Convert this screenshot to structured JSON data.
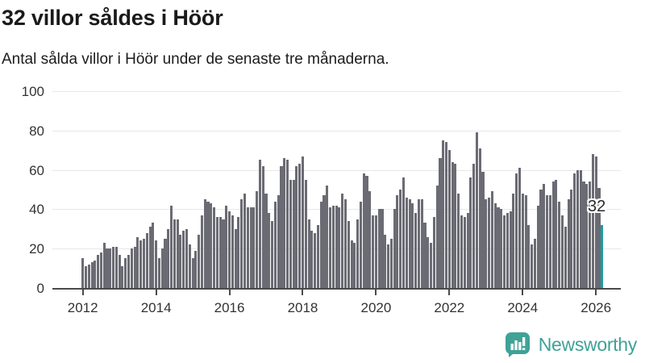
{
  "header": {
    "title": "32 villor såldes i Höör",
    "subtitle": "Antal sålda villor i Höör under de senaste tre månaderna."
  },
  "chart_data": {
    "type": "bar",
    "title": "32 villor såldes i Höör",
    "subtitle": "Antal sålda villor i Höör under de senaste tre månaderna.",
    "x_start": "2012-01",
    "frequency": "monthly",
    "values": [
      15,
      11,
      12,
      13,
      14,
      17,
      18,
      23,
      20,
      20,
      21,
      21,
      17,
      11,
      15,
      17,
      20,
      21,
      26,
      24,
      25,
      28,
      31,
      33,
      24,
      15,
      20,
      25,
      30,
      42,
      35,
      35,
      27,
      29,
      30,
      22,
      15,
      19,
      27,
      37,
      45,
      44,
      43,
      41,
      36,
      36,
      35,
      42,
      39,
      37,
      30,
      36,
      45,
      48,
      41,
      41,
      41,
      49,
      65,
      62,
      48,
      38,
      34,
      44,
      47,
      62,
      66,
      65,
      55,
      55,
      62,
      63,
      67,
      55,
      35,
      29,
      28,
      32,
      44,
      47,
      52,
      41,
      42,
      42,
      41,
      48,
      45,
      34,
      24,
      23,
      35,
      44,
      58,
      57,
      49,
      37,
      37,
      40,
      40,
      27,
      22,
      25,
      40,
      47,
      50,
      56,
      46,
      45,
      43,
      38,
      45,
      45,
      33,
      26,
      23,
      36,
      52,
      66,
      75,
      74,
      70,
      64,
      63,
      48,
      37,
      36,
      38,
      56,
      63,
      79,
      71,
      59,
      45,
      46,
      49,
      43,
      41,
      40,
      37,
      38,
      39,
      48,
      58,
      61,
      48,
      47,
      32,
      22,
      25,
      42,
      50,
      53,
      47,
      47,
      54,
      55,
      44,
      37,
      31,
      45,
      50,
      58,
      60,
      60,
      54,
      53,
      54,
      68,
      67,
      51,
      32
    ],
    "highlight_last_value": 32,
    "annotation": {
      "text": "32"
    },
    "x_tick_labels": [
      "2012",
      "2014",
      "2016",
      "2018",
      "2020",
      "2022",
      "2024",
      "2026"
    ],
    "y_ticks": [
      0,
      20,
      40,
      60,
      80,
      100
    ],
    "ylim": [
      0,
      100
    ],
    "grid": true,
    "legend": "none"
  },
  "colors": {
    "bar": "#6b6b74",
    "highlight": "#14a1a5",
    "brand": "#3fa296",
    "grid": "#e7e7e7",
    "axis": "#4a4a4a",
    "axis_text": "#333333"
  },
  "footer": {
    "brand": "Newsworthy",
    "logo_icon": "bar-chart-speech-bubble-icon"
  }
}
